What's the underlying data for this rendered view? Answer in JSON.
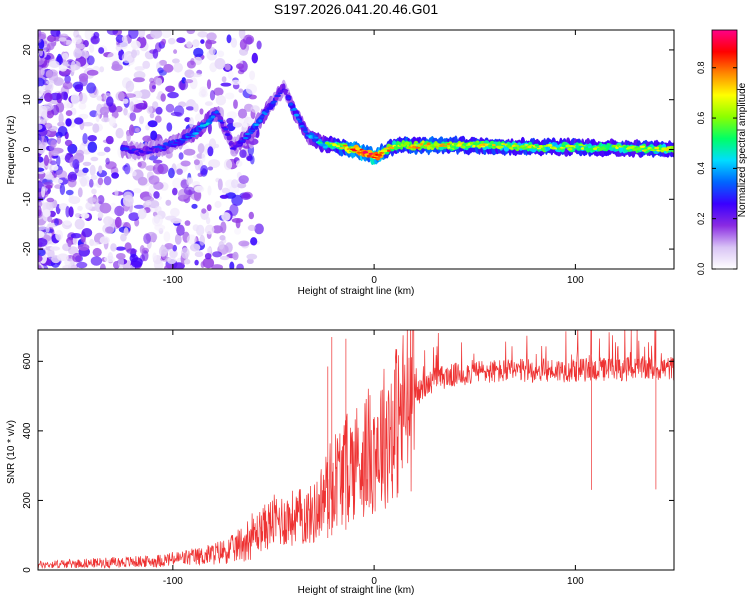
{
  "title": "S197.2026.041.20.46.G01",
  "chart_data": [
    {
      "type": "heatmap",
      "title": "S197.2026.041.20.46.G01",
      "xlabel": "Height of straight line (km)",
      "ylabel": "Frequency (Hz)",
      "xlim": [
        -167,
        149
      ],
      "ylim": [
        -24,
        24
      ],
      "xticks": [
        -100,
        0,
        100
      ],
      "yticks": [
        -20,
        -10,
        0,
        10,
        20
      ],
      "colorbar": {
        "label": "Normalized spectral amplitude",
        "range": [
          0.0,
          0.95
        ],
        "ticks": [
          "0.0",
          "0.2",
          "0.4",
          "0.6",
          "0.8"
        ],
        "colors": [
          "#ffffff",
          "#d9c4f5",
          "#8a2be2",
          "#3a00ff",
          "#0066ff",
          "#00ddff",
          "#00ff66",
          "#8cff00",
          "#ffff00",
          "#ff8800",
          "#ff0000",
          "#ff0088"
        ]
      },
      "ridge": [
        {
          "x": -125,
          "f": 0.0,
          "a": 0.25
        },
        {
          "x": -115,
          "f": -0.5,
          "a": 0.2
        },
        {
          "x": -105,
          "f": 0.5,
          "a": 0.25
        },
        {
          "x": -97,
          "f": 1.5,
          "a": 0.25
        },
        {
          "x": -90,
          "f": 3.0,
          "a": 0.3
        },
        {
          "x": -83,
          "f": 5.5,
          "a": 0.35
        },
        {
          "x": -78,
          "f": 7.5,
          "a": 0.25
        },
        {
          "x": -70,
          "f": 0.5,
          "a": 0.2
        },
        {
          "x": -62,
          "f": 3.0,
          "a": 0.3
        },
        {
          "x": -56,
          "f": 6.5,
          "a": 0.3
        },
        {
          "x": -50,
          "f": 9.5,
          "a": 0.25
        },
        {
          "x": -45,
          "f": 12.5,
          "a": 0.2
        },
        {
          "x": -40,
          "f": 8.0,
          "a": 0.3
        },
        {
          "x": -33,
          "f": 3.0,
          "a": 0.3
        },
        {
          "x": -25,
          "f": 1.0,
          "a": 0.4
        },
        {
          "x": -15,
          "f": 0.5,
          "a": 0.6
        },
        {
          "x": -5,
          "f": -0.5,
          "a": 0.75
        },
        {
          "x": 0,
          "f": -1.5,
          "a": 0.8
        },
        {
          "x": 10,
          "f": 0.8,
          "a": 0.55
        },
        {
          "x": 25,
          "f": 0.8,
          "a": 0.6
        },
        {
          "x": 50,
          "f": 0.8,
          "a": 0.55
        },
        {
          "x": 80,
          "f": 0.5,
          "a": 0.55
        },
        {
          "x": 100,
          "f": 0.5,
          "a": 0.5
        },
        {
          "x": 125,
          "f": 0.3,
          "a": 0.5
        },
        {
          "x": 149,
          "f": 0.0,
          "a": 0.55
        }
      ]
    },
    {
      "type": "line",
      "xlabel": "Height of straight line (km)",
      "ylabel": "SNR (10 * v/v)",
      "xlim": [
        -167,
        149
      ],
      "ylim": [
        0,
        690
      ],
      "xticks": [
        -100,
        0,
        100
      ],
      "yticks": [
        0,
        200,
        400,
        600
      ],
      "color": "#ee3333",
      "envelope": [
        {
          "x": -167,
          "y": 15
        },
        {
          "x": -140,
          "y": 20
        },
        {
          "x": -110,
          "y": 25
        },
        {
          "x": -85,
          "y": 40
        },
        {
          "x": -70,
          "y": 60
        },
        {
          "x": -60,
          "y": 100
        },
        {
          "x": -50,
          "y": 140
        },
        {
          "x": -40,
          "y": 150
        },
        {
          "x": -30,
          "y": 160
        },
        {
          "x": -20,
          "y": 260
        },
        {
          "x": -10,
          "y": 310
        },
        {
          "x": 0,
          "y": 350
        },
        {
          "x": 10,
          "y": 420
        },
        {
          "x": 20,
          "y": 500
        },
        {
          "x": 30,
          "y": 550
        },
        {
          "x": 50,
          "y": 570
        },
        {
          "x": 100,
          "y": 575
        },
        {
          "x": 149,
          "y": 580
        }
      ],
      "spikes": [
        {
          "x": -23,
          "y": 585
        },
        {
          "x": -21,
          "y": 670
        },
        {
          "x": -14,
          "y": 665
        },
        {
          "x": 108,
          "y": 690
        },
        {
          "x": 140,
          "y": 690
        }
      ]
    }
  ]
}
